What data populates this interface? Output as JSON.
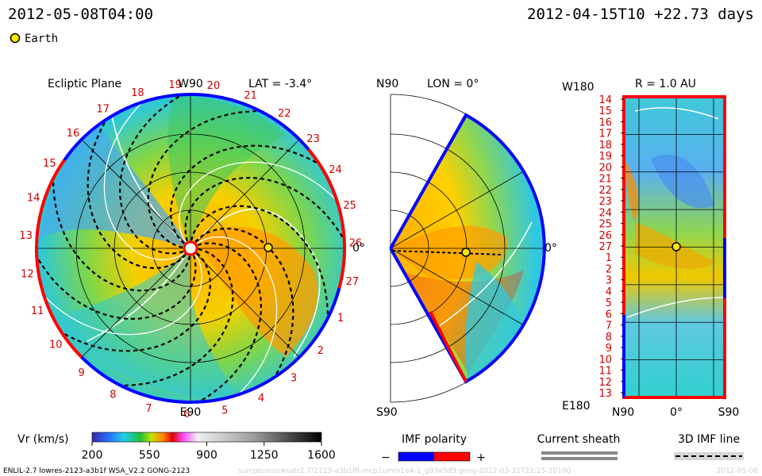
{
  "header": {
    "left_time": "2012-05-08T04:00",
    "right_time": "2012-04-15T10 +22.73 days",
    "earth_label": "Earth"
  },
  "colors": {
    "earth_marker": "#ffe600",
    "polarity_negative": "#0000ff",
    "polarity_positive": "#ff0000",
    "current_sheath": "#888888"
  },
  "chart_data": [
    {
      "type": "heatmap",
      "panel": "ecliptic",
      "title": "Ecliptic Plane",
      "lat_label": "LAT = -3.4°",
      "top_label": "W90",
      "bottom_label": "E90",
      "right_label": "0°",
      "carrington_labels": [
        "20",
        "21",
        "22",
        "23",
        "24",
        "25",
        "26",
        "27",
        "1",
        "2",
        "3",
        "4",
        "5",
        "6",
        "7",
        "8",
        "9",
        "10",
        "11",
        "12",
        "13",
        "14",
        "15",
        "16",
        "17",
        "18",
        "19"
      ]
    },
    {
      "type": "heatmap",
      "panel": "meridional",
      "title": "LON = 0°",
      "top_label": "N90",
      "bottom_label": "S90",
      "right_label": "0°"
    },
    {
      "type": "heatmap",
      "panel": "radial",
      "title": "R = 1.0 AU",
      "top_left_label": "W180",
      "bottom_left_label": "E180",
      "x_tick_labels": [
        "N90",
        "0°",
        "S90"
      ],
      "y_tick_labels": [
        "14",
        "15",
        "16",
        "17",
        "18",
        "19",
        "20",
        "21",
        "22",
        "23",
        "24",
        "25",
        "26",
        "27",
        "1",
        "2",
        "3",
        "4",
        "5",
        "6",
        "7",
        "8",
        "9",
        "10",
        "11",
        "12",
        "13"
      ]
    }
  ],
  "colorbar": {
    "label": "Vr (km/s)",
    "ticks": [
      "200",
      "550",
      "900",
      "1250",
      "1600"
    ],
    "range": [
      200,
      1600
    ]
  },
  "legend": {
    "imf_polarity": "IMF polarity",
    "minus": "−",
    "plus": "+",
    "current_sheath": "Current sheath",
    "imf_line": "3D IMF line"
  },
  "footer": {
    "model": "ENLIL-2.7 lowres-2123-a3b1f WSA_V2.2 GONG-2123",
    "source": "sumptuous/wsatr2.7/2123-a3b1f8-mcp1umm1e4-1_g93a5d9.gong-2012-03-31T22:15-20100",
    "date": "2012-05-08"
  }
}
